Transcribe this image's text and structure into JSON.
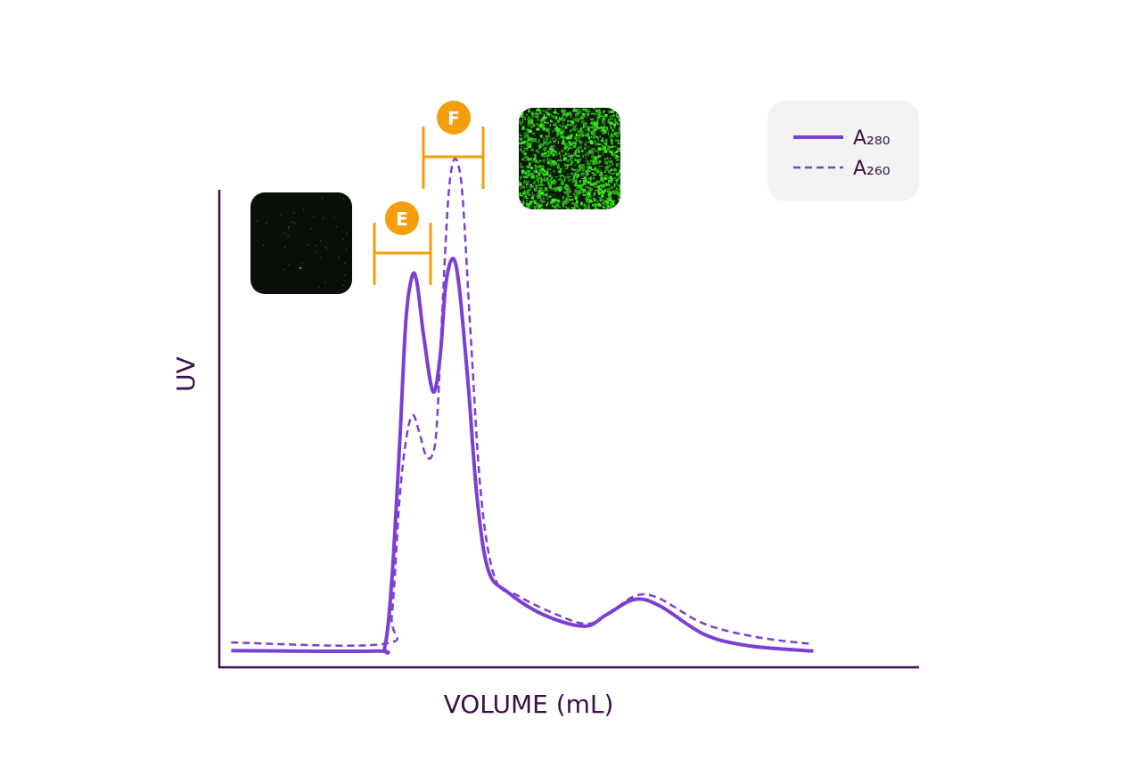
{
  "chart_data": {
    "type": "line",
    "xlabel": "VOLUME (mL)",
    "ylabel": "UV",
    "xlim": [
      0,
      100
    ],
    "ylim": [
      0,
      100
    ],
    "legend": "upper right",
    "series": [
      {
        "name": "A₂₈₀",
        "color": "#7b3fd4",
        "style": "solid",
        "x": [
          1.7,
          22.2,
          23.7,
          24.7,
          25.8,
          26.7,
          27.6,
          28.3,
          29.3,
          30.6,
          31.6,
          32.4,
          33.4,
          34.3,
          35.6,
          36.9,
          38.5,
          41.3,
          46.4,
          52.2,
          55.4,
          59.4,
          63.0,
          69.4,
          75.8,
          85.0
        ],
        "values": [
          3.5,
          3.4,
          4.5,
          18.5,
          46.5,
          72.6,
          81.9,
          80.4,
          68.8,
          57.7,
          65.1,
          80.0,
          85.6,
          80.0,
          59.5,
          35.3,
          20.3,
          15.7,
          11.0,
          8.6,
          11.0,
          14.2,
          12.9,
          6.9,
          4.5,
          3.4
        ]
      },
      {
        "name": "A₂₆₀",
        "color": "#7b3fd4",
        "style": "dashed",
        "x": [
          1.7,
          23.5,
          24.7,
          25.8,
          26.8,
          27.7,
          28.6,
          29.5,
          30.4,
          31.1,
          31.9,
          32.7,
          33.4,
          34.2,
          34.9,
          36.0,
          37.5,
          39.5,
          42.6,
          47.7,
          52.8,
          56.6,
          59.8,
          63.0,
          69.4,
          77.0,
          84.7
        ],
        "values": [
          5.2,
          4.9,
          11.0,
          35.3,
          48.3,
          52.8,
          49.3,
          44.6,
          44.2,
          50.2,
          74.4,
          96.8,
          105.6,
          105.2,
          96.8,
          68.8,
          35.3,
          18.5,
          15.1,
          11.4,
          9.1,
          12.3,
          15.1,
          14.4,
          9.1,
          6.3,
          4.9
        ]
      }
    ],
    "annotations": [
      {
        "text": "E"
      },
      {
        "text": "F"
      }
    ]
  }
}
